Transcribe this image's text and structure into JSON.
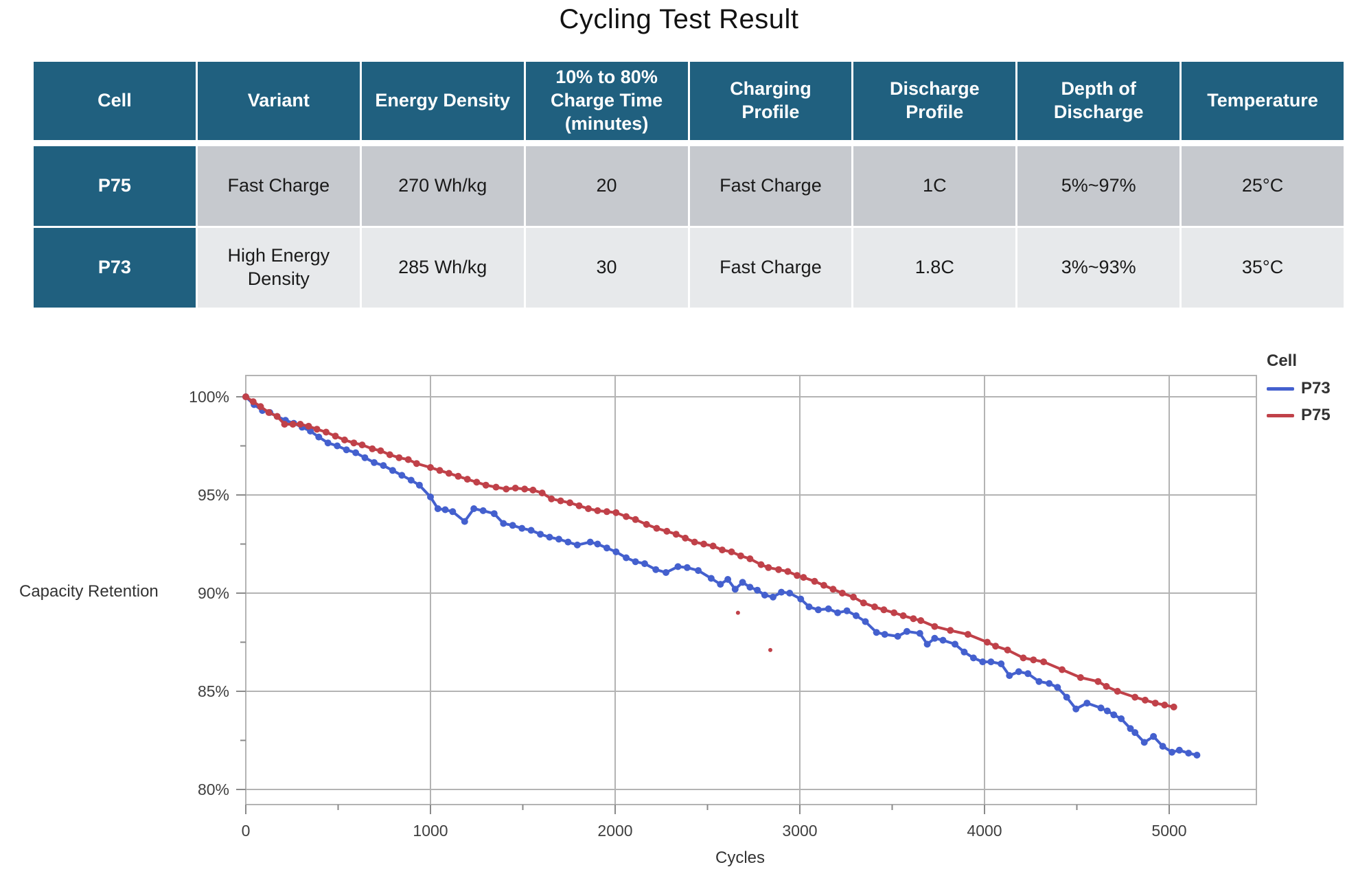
{
  "page": {
    "title": "Cycling Test Result"
  },
  "table": {
    "columns": [
      "Cell",
      "Variant",
      "Energy Density",
      "10% to 80% Charge Time (minutes)",
      "Charging Profile",
      "Discharge Profile",
      "Depth of Discharge",
      "Temperature"
    ],
    "rows": [
      [
        "P75",
        "Fast Charge",
        "270 Wh/kg",
        "20",
        "Fast Charge",
        "1C",
        "5%~97%",
        "25°C"
      ],
      [
        "P73",
        "High Energy Density",
        "285 Wh/kg",
        "30",
        "Fast Charge",
        "1.8C",
        "3%~93%",
        "35°C"
      ]
    ],
    "colors": {
      "header_bg": "#20607F",
      "header_text": "#FFFFFF",
      "row1_bg": "#C6C9CE",
      "row2_bg": "#E7E9EB",
      "cell_text": "#1A1A1A"
    }
  },
  "chart_data": {
    "type": "line",
    "title": "",
    "xlabel": "Cycles",
    "ylabel": "Capacity Retention",
    "legend_title": "Cell",
    "legend_position": "right-top",
    "grid": true,
    "xlim": [
      0,
      5470
    ],
    "ylim": [
      79.2,
      101.1
    ],
    "xticks": [
      0,
      1000,
      2000,
      3000,
      4000,
      5000
    ],
    "xtick_labels": [
      "0",
      "1000",
      "2000",
      "3000",
      "4000",
      "5000"
    ],
    "xticks_minor": [
      500,
      1500,
      2500,
      3500,
      4500
    ],
    "yticks": [
      100,
      95,
      90,
      85,
      80
    ],
    "ytick_labels": [
      "100%",
      "95%",
      "90%",
      "85%",
      "80%"
    ],
    "yticks_minor": [
      97.5,
      92.5,
      87.5,
      82.5
    ],
    "series": [
      {
        "name": "P73",
        "color": "#4460CE",
        "points": [
          [
            0,
            100
          ],
          [
            45,
            99.6
          ],
          [
            90,
            99.3
          ],
          [
            130,
            99.2
          ],
          [
            170,
            99.0
          ],
          [
            215,
            98.8
          ],
          [
            260,
            98.65
          ],
          [
            305,
            98.45
          ],
          [
            350,
            98.25
          ],
          [
            395,
            97.95
          ],
          [
            445,
            97.65
          ],
          [
            495,
            97.5
          ],
          [
            545,
            97.3
          ],
          [
            595,
            97.15
          ],
          [
            645,
            96.9
          ],
          [
            695,
            96.65
          ],
          [
            745,
            96.5
          ],
          [
            795,
            96.25
          ],
          [
            845,
            96.0
          ],
          [
            895,
            95.75
          ],
          [
            940,
            95.5
          ],
          [
            1000,
            94.9
          ],
          [
            1040,
            94.3
          ],
          [
            1080,
            94.25
          ],
          [
            1120,
            94.15
          ],
          [
            1185,
            93.65
          ],
          [
            1235,
            94.3
          ],
          [
            1285,
            94.2
          ],
          [
            1345,
            94.05
          ],
          [
            1395,
            93.55
          ],
          [
            1445,
            93.45
          ],
          [
            1495,
            93.3
          ],
          [
            1545,
            93.2
          ],
          [
            1595,
            93.0
          ],
          [
            1645,
            92.85
          ],
          [
            1695,
            92.75
          ],
          [
            1745,
            92.6
          ],
          [
            1795,
            92.45
          ],
          [
            1865,
            92.6
          ],
          [
            1905,
            92.5
          ],
          [
            1955,
            92.3
          ],
          [
            2005,
            92.1
          ],
          [
            2060,
            91.8
          ],
          [
            2110,
            91.6
          ],
          [
            2160,
            91.5
          ],
          [
            2220,
            91.2
          ],
          [
            2275,
            91.05
          ],
          [
            2340,
            91.35
          ],
          [
            2390,
            91.3
          ],
          [
            2450,
            91.15
          ],
          [
            2520,
            90.75
          ],
          [
            2570,
            90.45
          ],
          [
            2610,
            90.7
          ],
          [
            2650,
            90.2
          ],
          [
            2690,
            90.55
          ],
          [
            2730,
            90.3
          ],
          [
            2770,
            90.15
          ],
          [
            2810,
            89.9
          ],
          [
            2855,
            89.8
          ],
          [
            2900,
            90.05
          ],
          [
            2945,
            90.0
          ],
          [
            3005,
            89.7
          ],
          [
            3050,
            89.3
          ],
          [
            3100,
            89.15
          ],
          [
            3155,
            89.2
          ],
          [
            3205,
            89.0
          ],
          [
            3255,
            89.1
          ],
          [
            3305,
            88.85
          ],
          [
            3355,
            88.55
          ],
          [
            3415,
            88.0
          ],
          [
            3460,
            87.9
          ],
          [
            3530,
            87.8
          ],
          [
            3580,
            88.05
          ],
          [
            3650,
            87.95
          ],
          [
            3690,
            87.4
          ],
          [
            3730,
            87.7
          ],
          [
            3775,
            87.6
          ],
          [
            3840,
            87.4
          ],
          [
            3890,
            87.0
          ],
          [
            3940,
            86.7
          ],
          [
            3990,
            86.5
          ],
          [
            4035,
            86.5
          ],
          [
            4090,
            86.4
          ],
          [
            4135,
            85.8
          ],
          [
            4185,
            86.0
          ],
          [
            4235,
            85.9
          ],
          [
            4295,
            85.5
          ],
          [
            4350,
            85.4
          ],
          [
            4395,
            85.2
          ],
          [
            4445,
            84.7
          ],
          [
            4495,
            84.1
          ],
          [
            4555,
            84.4
          ],
          [
            4630,
            84.15
          ],
          [
            4665,
            84.0
          ],
          [
            4700,
            83.8
          ],
          [
            4740,
            83.6
          ],
          [
            4790,
            83.1
          ],
          [
            4815,
            82.9
          ],
          [
            4865,
            82.4
          ],
          [
            4915,
            82.7
          ],
          [
            4965,
            82.2
          ],
          [
            5015,
            81.9
          ],
          [
            5055,
            82.0
          ],
          [
            5105,
            81.85
          ],
          [
            5150,
            81.75
          ]
        ],
        "outliers": []
      },
      {
        "name": "P75",
        "color": "#C04149",
        "points": [
          [
            0,
            100
          ],
          [
            40,
            99.75
          ],
          [
            80,
            99.5
          ],
          [
            125,
            99.2
          ],
          [
            170,
            99.0
          ],
          [
            210,
            98.6
          ],
          [
            255,
            98.6
          ],
          [
            295,
            98.6
          ],
          [
            340,
            98.5
          ],
          [
            385,
            98.35
          ],
          [
            435,
            98.2
          ],
          [
            485,
            98.0
          ],
          [
            535,
            97.8
          ],
          [
            585,
            97.65
          ],
          [
            630,
            97.55
          ],
          [
            685,
            97.35
          ],
          [
            730,
            97.25
          ],
          [
            780,
            97.05
          ],
          [
            830,
            96.9
          ],
          [
            880,
            96.8
          ],
          [
            925,
            96.6
          ],
          [
            1000,
            96.4
          ],
          [
            1050,
            96.25
          ],
          [
            1100,
            96.1
          ],
          [
            1150,
            95.95
          ],
          [
            1200,
            95.8
          ],
          [
            1250,
            95.65
          ],
          [
            1300,
            95.5
          ],
          [
            1355,
            95.4
          ],
          [
            1410,
            95.3
          ],
          [
            1460,
            95.35
          ],
          [
            1510,
            95.3
          ],
          [
            1555,
            95.25
          ],
          [
            1605,
            95.1
          ],
          [
            1655,
            94.8
          ],
          [
            1705,
            94.7
          ],
          [
            1755,
            94.6
          ],
          [
            1805,
            94.45
          ],
          [
            1855,
            94.3
          ],
          [
            1905,
            94.2
          ],
          [
            1955,
            94.15
          ],
          [
            2005,
            94.1
          ],
          [
            2060,
            93.9
          ],
          [
            2110,
            93.75
          ],
          [
            2170,
            93.5
          ],
          [
            2225,
            93.3
          ],
          [
            2280,
            93.15
          ],
          [
            2330,
            93.0
          ],
          [
            2380,
            92.8
          ],
          [
            2430,
            92.6
          ],
          [
            2480,
            92.5
          ],
          [
            2530,
            92.4
          ],
          [
            2580,
            92.2
          ],
          [
            2630,
            92.1
          ],
          [
            2680,
            91.9
          ],
          [
            2730,
            91.75
          ],
          [
            2790,
            91.45
          ],
          [
            2830,
            91.3
          ],
          [
            2885,
            91.2
          ],
          [
            2935,
            91.1
          ],
          [
            2985,
            90.9
          ],
          [
            3020,
            90.8
          ],
          [
            3080,
            90.6
          ],
          [
            3130,
            90.4
          ],
          [
            3180,
            90.2
          ],
          [
            3230,
            90.0
          ],
          [
            3290,
            89.8
          ],
          [
            3345,
            89.5
          ],
          [
            3405,
            89.3
          ],
          [
            3455,
            89.15
          ],
          [
            3510,
            89.0
          ],
          [
            3560,
            88.85
          ],
          [
            3615,
            88.7
          ],
          [
            3655,
            88.6
          ],
          [
            3730,
            88.3
          ],
          [
            3815,
            88.1
          ],
          [
            3910,
            87.9
          ],
          [
            4015,
            87.5
          ],
          [
            4060,
            87.3
          ],
          [
            4125,
            87.1
          ],
          [
            4210,
            86.7
          ],
          [
            4265,
            86.6
          ],
          [
            4320,
            86.5
          ],
          [
            4420,
            86.1
          ],
          [
            4520,
            85.7
          ],
          [
            4615,
            85.5
          ],
          [
            4660,
            85.25
          ],
          [
            4720,
            85.0
          ],
          [
            4815,
            84.7
          ],
          [
            4870,
            84.55
          ],
          [
            4925,
            84.4
          ],
          [
            4975,
            84.3
          ],
          [
            5025,
            84.2
          ]
        ],
        "outliers": [
          [
            2665,
            89.0
          ],
          [
            2840,
            87.1
          ]
        ]
      }
    ]
  }
}
